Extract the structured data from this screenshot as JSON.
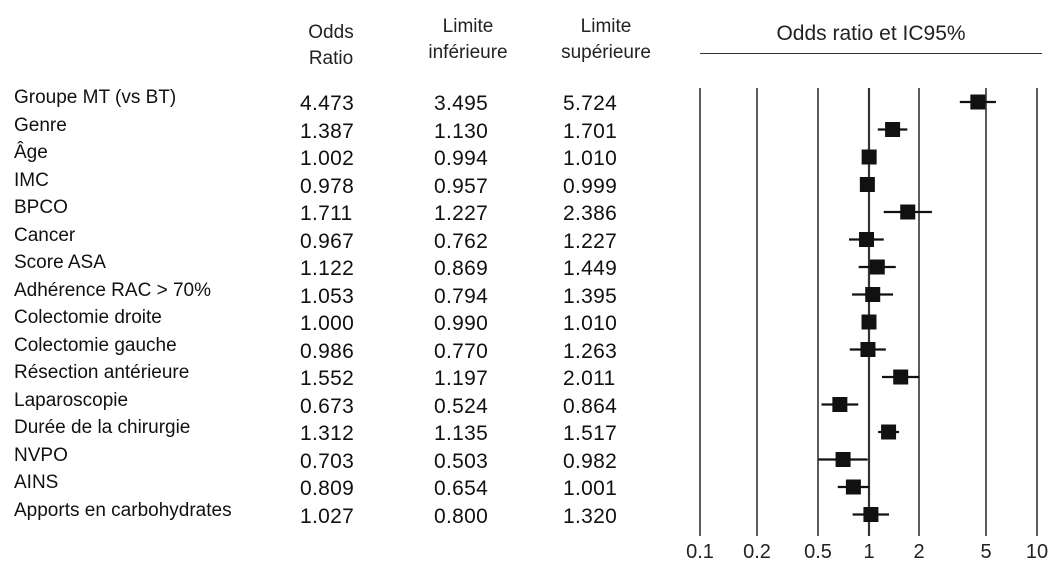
{
  "headers": {
    "odds_ratio": [
      "Odds",
      "Ratio"
    ],
    "lower": [
      "Limite",
      "inférieure"
    ],
    "upper": [
      "Limite",
      "supérieure"
    ]
  },
  "chart_data": {
    "type": "forest",
    "title": "Odds ratio et IC95%",
    "x_scale": "log",
    "xlim": [
      0.1,
      10
    ],
    "reference_line": 1,
    "x_ticks": [
      0.1,
      0.2,
      0.5,
      1,
      2,
      5,
      10
    ],
    "x_tick_labels": [
      "0.1",
      "0.2",
      "0.5",
      "1",
      "2",
      "5",
      "10"
    ],
    "rows": [
      {
        "label": "Groupe MT (vs BT)",
        "or": "4.473",
        "low": "3.495",
        "high": "5.724"
      },
      {
        "label": "Genre",
        "or": "1.387",
        "low": "1.130",
        "high": "1.701"
      },
      {
        "label": "Âge",
        "or": "1.002",
        "low": "0.994",
        "high": "1.010"
      },
      {
        "label": "IMC",
        "or": "0.978",
        "low": "0.957",
        "high": "0.999"
      },
      {
        "label": "BPCO",
        "or": "1.711",
        "low": "1.227",
        "high": "2.386"
      },
      {
        "label": "Cancer",
        "or": "0.967",
        "low": "0.762",
        "high": "1.227"
      },
      {
        "label": "Score ASA",
        "or": "1.122",
        "low": "0.869",
        "high": "1.449"
      },
      {
        "label": "Adhérence RAC > 70%",
        "or": "1.053",
        "low": "0.794",
        "high": "1.395"
      },
      {
        "label": "Colectomie droite",
        "or": "1.000",
        "low": "0.990",
        "high": "1.010"
      },
      {
        "label": "Colectomie gauche",
        "or": "0.986",
        "low": "0.770",
        "high": "1.263"
      },
      {
        "label": "Résection antérieure",
        "or": "1.552",
        "low": "1.197",
        "high": "2.011"
      },
      {
        "label": "Laparoscopie",
        "or": "0.673",
        "low": "0.524",
        "high": "0.864"
      },
      {
        "label": "Durée de la chirurgie",
        "or": "1.312",
        "low": "1.135",
        "high": "1.517"
      },
      {
        "label": "NVPO",
        "or": "0.703",
        "low": "0.503",
        "high": "0.982"
      },
      {
        "label": "AINS",
        "or": "0.809",
        "low": "0.654",
        "high": "1.001"
      },
      {
        "label": "Apports en carbohydrates",
        "or": "1.027",
        "low": "0.800",
        "high": "1.320"
      }
    ],
    "marker_color": "#111111",
    "line_color": "#333333"
  }
}
